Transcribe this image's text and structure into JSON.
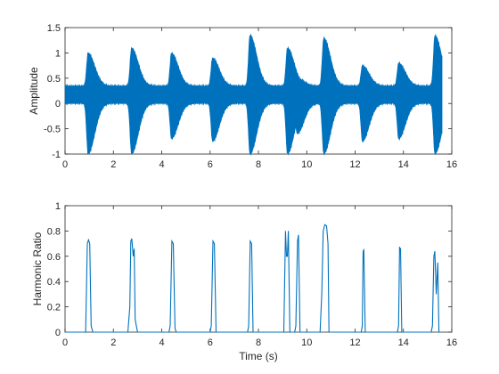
{
  "chart_data": [
    {
      "type": "line",
      "title": "",
      "xlabel": "",
      "ylabel": "Amplitude",
      "xlim": [
        0,
        16
      ],
      "ylim": [
        -1,
        1.5
      ],
      "xticks": [
        0,
        2,
        4,
        6,
        8,
        10,
        12,
        14,
        16
      ],
      "yticks": [
        -1,
        -0.5,
        0,
        0.5,
        1,
        1.5
      ],
      "xtick_labels": [
        "0",
        "2",
        "4",
        "6",
        "8",
        "10",
        "12",
        "14",
        "16"
      ],
      "ytick_labels": [
        "-1",
        "-0.5",
        "0",
        "0.5",
        "1",
        "1.5"
      ],
      "color": "#0072BD",
      "series": [
        {
          "envelope": {
            "x_start": 0.0,
            "x_end": 15.6,
            "baseline_upper": 0.35,
            "baseline_lower": 0.0,
            "events": [
              {
                "t": 0.95,
                "upper": 1.0,
                "lower": -1.0
              },
              {
                "t": 2.75,
                "upper": 1.1,
                "lower": -1.0
              },
              {
                "t": 4.4,
                "upper": 1.0,
                "lower": -0.7
              },
              {
                "t": 6.1,
                "upper": 0.9,
                "lower": -0.75
              },
              {
                "t": 7.65,
                "upper": 1.35,
                "lower": -1.0
              },
              {
                "t": 9.2,
                "upper": 1.1,
                "lower": -1.0
              },
              {
                "t": 9.6,
                "upper": 0.5,
                "lower": -0.6
              },
              {
                "t": 10.7,
                "upper": 1.3,
                "lower": -1.0
              },
              {
                "t": 12.3,
                "upper": 0.75,
                "lower": -0.75
              },
              {
                "t": 13.8,
                "upper": 0.8,
                "lower": -0.7
              },
              {
                "t": 15.3,
                "upper": 1.35,
                "lower": -1.0
              }
            ]
          }
        }
      ]
    },
    {
      "type": "line",
      "title": "",
      "xlabel": "Time (s)",
      "ylabel": "Harmonic Ratio",
      "xlim": [
        0,
        16
      ],
      "ylim": [
        0,
        1
      ],
      "xticks": [
        0,
        2,
        4,
        6,
        8,
        10,
        12,
        14,
        16
      ],
      "yticks": [
        0,
        0.2,
        0.4,
        0.6,
        0.8,
        1
      ],
      "xtick_labels": [
        "0",
        "2",
        "4",
        "6",
        "8",
        "10",
        "12",
        "14",
        "16"
      ],
      "ytick_labels": [
        "0",
        "0.2",
        "0.4",
        "0.6",
        "0.8",
        "1"
      ],
      "color": "#0072BD",
      "series": [
        {
          "x": [
            0,
            0.85,
            0.92,
            0.97,
            1.02,
            1.08,
            1.15,
            2.6,
            2.68,
            2.72,
            2.76,
            2.82,
            2.86,
            2.9,
            2.95,
            3.0,
            4.3,
            4.35,
            4.42,
            4.48,
            4.55,
            4.6,
            6.0,
            6.05,
            6.12,
            6.18,
            6.25,
            7.55,
            7.6,
            7.66,
            7.72,
            7.78,
            9.05,
            9.12,
            9.16,
            9.2,
            9.24,
            9.3,
            9.5,
            9.55,
            9.62,
            9.66,
            9.72,
            10.55,
            10.62,
            10.68,
            10.75,
            10.82,
            10.88,
            10.92,
            12.25,
            12.3,
            12.33,
            12.36,
            12.42,
            13.75,
            13.8,
            13.84,
            13.88,
            13.93,
            15.15,
            15.2,
            15.26,
            15.3,
            15.36,
            15.42,
            15.47,
            15.6
          ],
          "y": [
            0,
            0,
            0.7,
            0.73,
            0.7,
            0.05,
            0,
            0,
            0.2,
            0.72,
            0.74,
            0.6,
            0.66,
            0.1,
            0.05,
            0,
            0,
            0.05,
            0.72,
            0.7,
            0.03,
            0,
            0,
            0.05,
            0.72,
            0.7,
            0,
            0,
            0.05,
            0.72,
            0.7,
            0,
            0,
            0.8,
            0.6,
            0.6,
            0.8,
            0,
            0,
            0.05,
            0.72,
            0.77,
            0,
            0,
            0.3,
            0.8,
            0.85,
            0.84,
            0.7,
            0,
            0,
            0.05,
            0.64,
            0.65,
            0,
            0,
            0.05,
            0.67,
            0.66,
            0,
            0,
            0.05,
            0.6,
            0.64,
            0.3,
            0.55,
            0,
            0
          ]
        }
      ]
    }
  ]
}
